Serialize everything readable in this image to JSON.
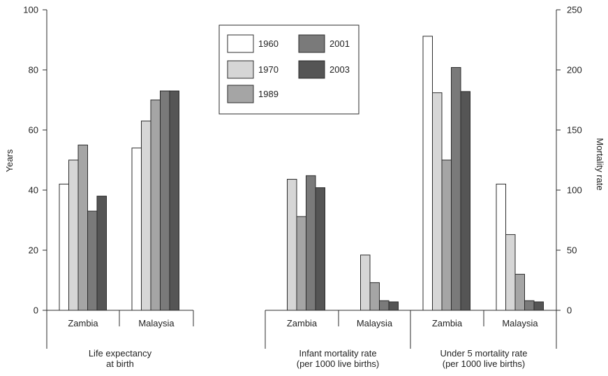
{
  "chart_data": {
    "type": "bar",
    "colors": {
      "1960": "#ffffff",
      "1970": "#d6d6d6",
      "1989": "#a5a5a5",
      "2001": "#7a7a7a",
      "2003": "#555555",
      "stroke": "#2b2b2b"
    },
    "legend": {
      "placement": "top-center",
      "entries": [
        "1960",
        "1970",
        "1989",
        "2001",
        "2003"
      ]
    },
    "left_axis": {
      "label": "Years",
      "ylim": [
        0,
        100
      ],
      "ticks": [
        "0",
        "20",
        "40",
        "60",
        "80",
        "100"
      ]
    },
    "right_axis": {
      "label": "Mortality rate",
      "ylim": [
        0,
        250
      ],
      "ticks": [
        "0",
        "50",
        "100",
        "150",
        "200",
        "250"
      ]
    },
    "groups": [
      {
        "label": "Life expectancy\nat birth",
        "axis": "left",
        "categories": [
          {
            "name": "Zambia",
            "values": {
              "1960": 42,
              "1970": 50,
              "1989": 55,
              "2001": 33,
              "2003": 38
            }
          },
          {
            "name": "Malaysia",
            "values": {
              "1960": 54,
              "1970": 63,
              "1989": 70,
              "2001": 73,
              "2003": 73
            }
          }
        ]
      },
      {
        "label": "Infant mortality rate\n(per 1000 live births)",
        "axis": "right",
        "categories": [
          {
            "name": "Zambia",
            "values": {
              "1960": null,
              "1970": 109,
              "1989": 78,
              "2001": 112,
              "2003": 102
            }
          },
          {
            "name": "Malaysia",
            "values": {
              "1960": null,
              "1970": 46,
              "1989": 23,
              "2001": 8,
              "2003": 7
            }
          }
        ]
      },
      {
        "label": "Under 5 mortality rate\n(per 1000 live births)",
        "axis": "right",
        "categories": [
          {
            "name": "Zambia",
            "values": {
              "1960": 228,
              "1970": 181,
              "1989": 125,
              "2001": 202,
              "2003": 182
            }
          },
          {
            "name": "Malaysia",
            "values": {
              "1960": 105,
              "1970": 63,
              "1989": 30,
              "2001": 8,
              "2003": 7
            }
          }
        ]
      }
    ]
  }
}
